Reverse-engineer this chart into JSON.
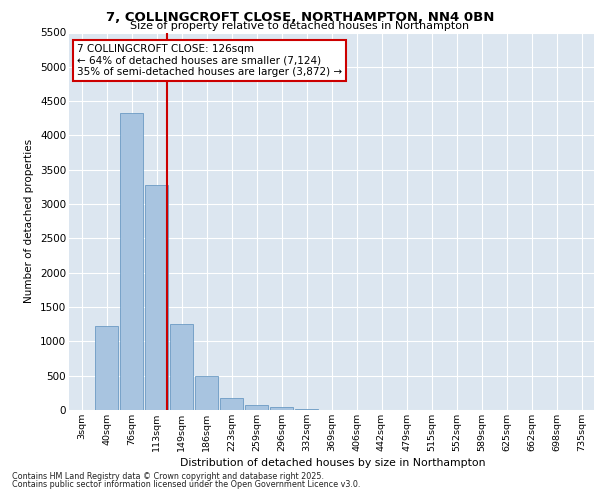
{
  "title_line1": "7, COLLINGCROFT CLOSE, NORTHAMPTON, NN4 0BN",
  "title_line2": "Size of property relative to detached houses in Northampton",
  "xlabel": "Distribution of detached houses by size in Northampton",
  "ylabel": "Number of detached properties",
  "categories": [
    "3sqm",
    "40sqm",
    "76sqm",
    "113sqm",
    "149sqm",
    "186sqm",
    "223sqm",
    "259sqm",
    "296sqm",
    "332sqm",
    "369sqm",
    "406sqm",
    "442sqm",
    "479sqm",
    "515sqm",
    "552sqm",
    "589sqm",
    "625sqm",
    "662sqm",
    "698sqm",
    "735sqm"
  ],
  "values": [
    0,
    1230,
    4330,
    3280,
    1250,
    490,
    170,
    80,
    40,
    10,
    5,
    0,
    0,
    0,
    0,
    0,
    0,
    0,
    0,
    0,
    0
  ],
  "bar_color": "#a8c4e0",
  "bar_edge_color": "#5a8fbc",
  "vline_x": 3.42,
  "vline_color": "#cc0000",
  "annotation_text": "7 COLLINGCROFT CLOSE: 126sqm\n← 64% of detached houses are smaller (7,124)\n35% of semi-detached houses are larger (3,872) →",
  "annotation_box_color": "#ffffff",
  "annotation_box_edge": "#cc0000",
  "ylim": [
    0,
    5500
  ],
  "yticks": [
    0,
    500,
    1000,
    1500,
    2000,
    2500,
    3000,
    3500,
    4000,
    4500,
    5000,
    5500
  ],
  "bg_color": "#dce6f0",
  "footnote1": "Contains HM Land Registry data © Crown copyright and database right 2025.",
  "footnote2": "Contains public sector information licensed under the Open Government Licence v3.0."
}
